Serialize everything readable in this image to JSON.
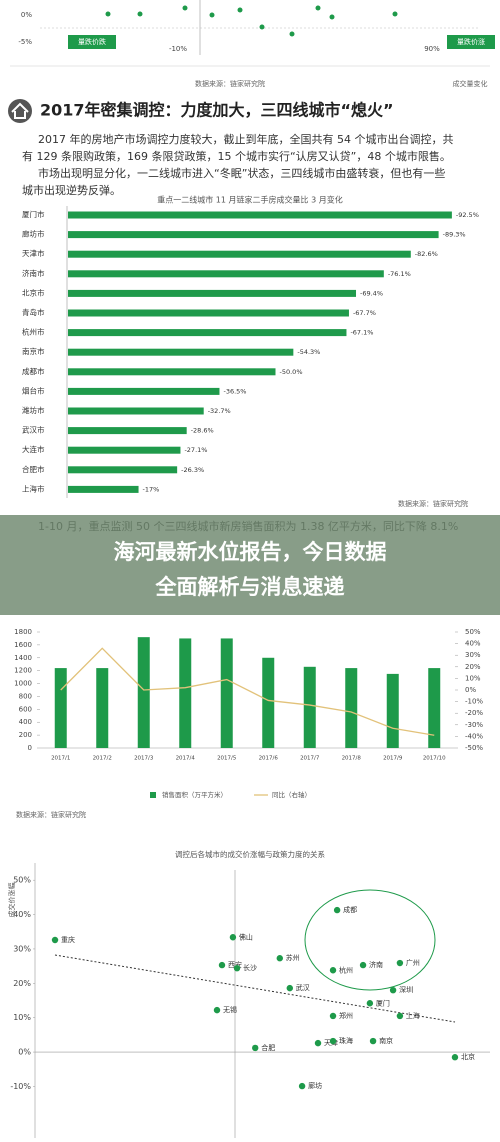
{
  "top": {
    "ytick_labels": [
      "0%",
      "-5%"
    ],
    "xtick_labels": [
      "-10%",
      "90%"
    ],
    "quadrants": [
      "量跌价跌",
      "量跌价涨"
    ],
    "source": "数据来源：链家研究院",
    "xlabel": "成交量变化"
  },
  "article": {
    "heading": "2017年密集调控：力度加大，三四线城市“熄火”",
    "paragraph1": [
      "2017 年的房地产市场调控力度较大，截止到年底，全国共有 54 个城市出台调控，共",
      "有 129 条限购政策，169 条限贷政策，15 个城市实行“认房又认贷”，48 个城市限售。"
    ],
    "paragraph2": [
      "市场出现明显分化，一二线城市进入“冬眠”状态，三四线城市由盛转衰，但也有一些",
      "城市出现逆势反弹。"
    ],
    "paragraph3": [
      "1-10 月，重点监测 50 个三四线城市新房销售面积为 1.38 亿平方米，同比下降 8.1%"
    ]
  },
  "banner": {
    "line1": "海河最新水位报告，今日数据",
    "line2": "全面解析与消息速递"
  },
  "chart_data": [
    {
      "type": "bar",
      "orientation": "horizontal",
      "title": "重点一二线城市 11 月链家二手房成交量比 3 月变化",
      "categories": [
        "厦门市",
        "廊坊市",
        "天津市",
        "济南市",
        "北京市",
        "青岛市",
        "杭州市",
        "南京市",
        "成都市",
        "烟台市",
        "潍坊市",
        "武汉市",
        "大连市",
        "合肥市",
        "上海市"
      ],
      "values": [
        -92.5,
        -89.3,
        -82.6,
        -76.1,
        -69.4,
        -67.7,
        -67.1,
        -54.3,
        -50.0,
        -36.5,
        -32.7,
        -28.6,
        -27.1,
        -26.3,
        -17
      ],
      "value_labels": [
        "-92.5%",
        "-89.3%",
        "-82.6%",
        "-76.1%",
        "-69.4%",
        "-67.7%",
        "-67.1%",
        "-54.3%",
        "-50.0%",
        "-36.5%",
        "-32.7%",
        "-28.6%",
        "-27.1%",
        "-26.3%",
        "-17%"
      ],
      "xlim": [
        0,
        -100
      ],
      "color": "#1f9a4b",
      "source": "数据来源：链家研究院"
    },
    {
      "type": "combo",
      "categories": [
        "2017/1",
        "2017/2",
        "2017/3",
        "2017/4",
        "2017/5",
        "2017/6",
        "2017/7",
        "2017/8",
        "2017/9",
        "2017/10"
      ],
      "series": [
        {
          "name": "销售面积（万平方米）",
          "kind": "bar",
          "color": "#1e9a4a",
          "values": [
            1240,
            1240,
            1720,
            1700,
            1700,
            1400,
            1260,
            1240,
            1150,
            1240
          ]
        },
        {
          "name": "同比（右轴）",
          "kind": "line",
          "axis": "y2",
          "color": "#e2c27a",
          "values": [
            0,
            36,
            0,
            2,
            9,
            -9,
            -13,
            -19,
            -33,
            -39
          ]
        }
      ],
      "ylim": [
        0,
        1800
      ],
      "yticks": [
        0,
        200,
        400,
        600,
        800,
        1000,
        1200,
        1400,
        1600,
        1800
      ],
      "y2lim": [
        -50,
        50
      ],
      "y2ticks": [
        {
          "value": 50,
          "label": "50%"
        },
        {
          "value": 40,
          "label": "40%"
        },
        {
          "value": 30,
          "label": "30%"
        },
        {
          "value": 20,
          "label": "20%"
        },
        {
          "value": 10,
          "label": "10%"
        },
        {
          "value": 0,
          "label": "0%"
        },
        {
          "value": -10,
          "label": "-10%"
        },
        {
          "value": -20,
          "label": "-20%"
        },
        {
          "value": -30,
          "label": "-30%"
        },
        {
          "value": -40,
          "label": "-40%"
        },
        {
          "value": -50,
          "label": "-50%"
        }
      ],
      "source": "数据来源：链家研究院"
    },
    {
      "type": "scatter",
      "title": "调控后各城市的成交价涨幅与政策力度的关系",
      "y_label": "成交价涨幅",
      "color": "#1e9a4a",
      "labels": [
        "重庆",
        "佛山",
        "西安",
        "长沙",
        "苏州",
        "无锡",
        "武汉",
        "成都",
        "杭州",
        "济南",
        "广州",
        "深圳",
        "厦门",
        "郑州",
        "上海",
        "天津",
        "珠海",
        "南京",
        "合肥",
        "北京",
        "廊坊"
      ],
      "x": [
        4.4,
        43.5,
        41.1,
        44.4,
        53.8,
        40,
        56,
        66.4,
        65.5,
        72.1,
        80.2,
        78.7,
        73.6,
        65.5,
        80.2,
        62.2,
        65.5,
        74.3,
        48.4,
        92.3,
        58.7
      ],
      "y": [
        32.6,
        33.4,
        25.3,
        24.4,
        27.3,
        12.2,
        18.6,
        41.3,
        23.8,
        25.3,
        25.9,
        18,
        14.2,
        10.5,
        10.5,
        2.6,
        3.2,
        3.2,
        1.2,
        -1.5,
        -9.9
      ],
      "xlim": [
        0,
        100
      ],
      "ylim": [
        -25,
        55
      ],
      "yticks": [
        {
          "value": 50,
          "label": "50%"
        },
        {
          "value": 40,
          "label": "40%"
        },
        {
          "value": 30,
          "label": "30%"
        },
        {
          "value": 20,
          "label": "20%"
        },
        {
          "value": 10,
          "label": "10%"
        },
        {
          "value": 0,
          "label": "0%"
        },
        {
          "value": -10,
          "label": "-10%"
        }
      ]
    }
  ]
}
